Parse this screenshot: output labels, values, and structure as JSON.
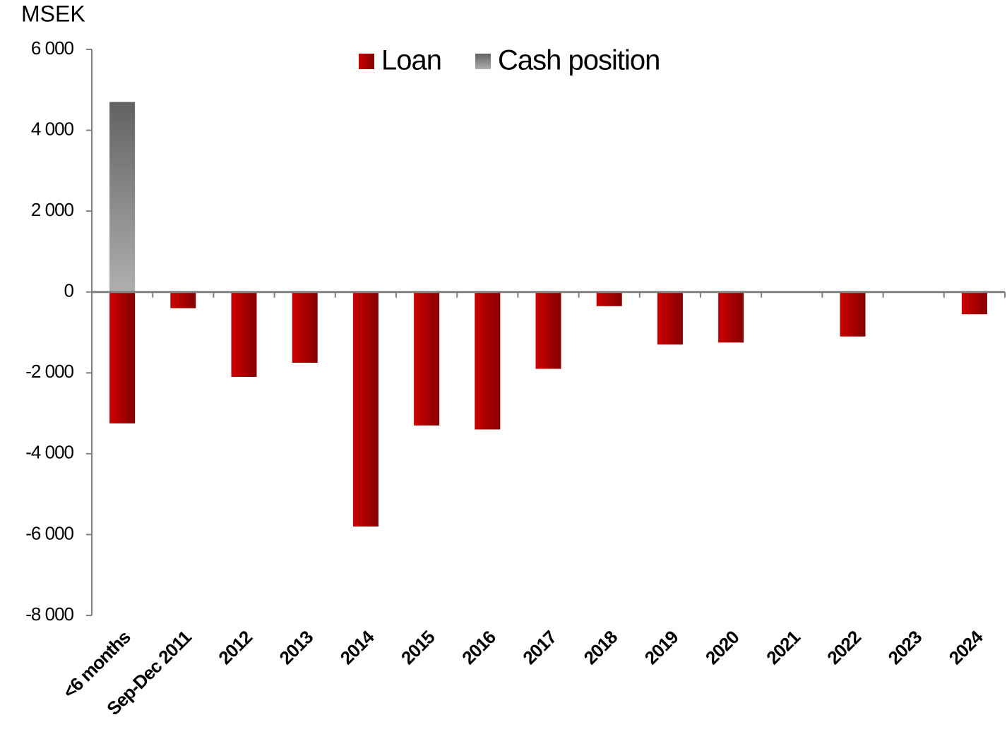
{
  "chart_data": {
    "type": "bar",
    "y_label": "MSEK",
    "categories": [
      "<6 months",
      "Sep-Dec 2011",
      "2012",
      "2013",
      "2014",
      "2015",
      "2016",
      "2017",
      "2018",
      "2019",
      "2020",
      "2021",
      "2022",
      "2023",
      "2024"
    ],
    "series": [
      {
        "name": "Loan",
        "color": "#cc0000",
        "values": [
          -3250,
          -400,
          -2100,
          -1750,
          -5800,
          -3300,
          -3400,
          -1900,
          -350,
          -1300,
          -1250,
          null,
          -1100,
          null,
          -550
        ]
      },
      {
        "name": "Cash position",
        "color": "#8c8c8c",
        "values": [
          4700,
          null,
          null,
          null,
          null,
          null,
          null,
          null,
          null,
          null,
          null,
          null,
          null,
          null,
          null
        ]
      }
    ],
    "ylim": [
      -8000,
      6000
    ],
    "yticks": [
      {
        "value": -8000,
        "label": "-8 000"
      },
      {
        "value": -6000,
        "label": "-6 000"
      },
      {
        "value": -4000,
        "label": "-4 000"
      },
      {
        "value": -2000,
        "label": "-2 000"
      },
      0,
      {
        "value": 2000,
        "label": "2 000"
      },
      {
        "value": 4000,
        "label": "4 000"
      },
      {
        "value": 6000,
        "label": "6 000"
      }
    ],
    "legend": "top"
  }
}
